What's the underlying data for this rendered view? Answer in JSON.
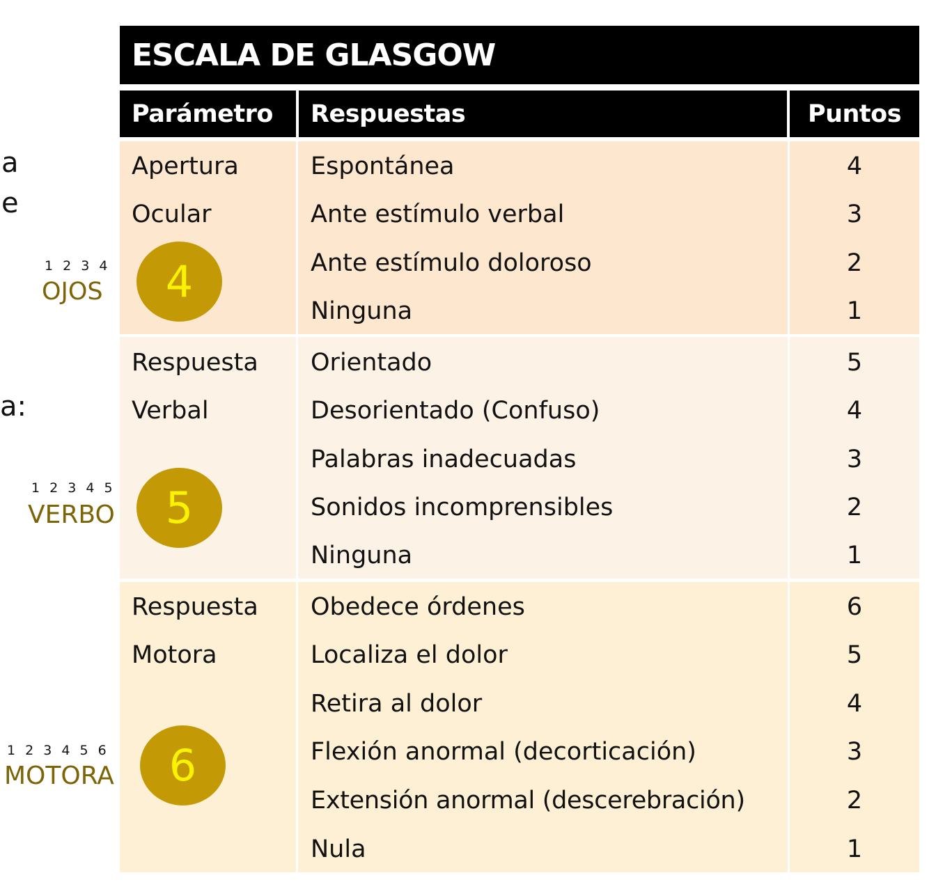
{
  "left_fragments": [
    "a",
    "e",
    "a:"
  ],
  "title": "ESCALA DE GLASGOW",
  "headers": {
    "param": "Parámetro",
    "resp": "Respuestas",
    "pts": "Puntos"
  },
  "groups": [
    {
      "param_line1": "Apertura",
      "param_line2": "Ocular",
      "score": "4",
      "scale_numbers": "1 2 3 4",
      "scale_label": "OJOS",
      "rows": [
        {
          "response": "Espontánea",
          "points": "4"
        },
        {
          "response": "Ante estímulo verbal",
          "points": "3"
        },
        {
          "response": "Ante estímulo doloroso",
          "points": "2"
        },
        {
          "response": "Ninguna",
          "points": "1"
        }
      ]
    },
    {
      "param_line1": "Respuesta",
      "param_line2": "Verbal",
      "score": "5",
      "scale_numbers": "1 2 3 4 5",
      "scale_label": "VERBO",
      "rows": [
        {
          "response": "Orientado",
          "points": "5"
        },
        {
          "response": "Desorientado (Confuso)",
          "points": "4"
        },
        {
          "response": "Palabras inadecuadas",
          "points": "3"
        },
        {
          "response": "Sonidos incomprensibles",
          "points": "2"
        },
        {
          "response": "Ninguna",
          "points": "1"
        }
      ]
    },
    {
      "param_line1": "Respuesta",
      "param_line2": "Motora",
      "score": "6",
      "scale_numbers": "1 2 3 4 5 6",
      "scale_label": "MOTORA",
      "rows": [
        {
          "response": "Obedece órdenes",
          "points": "6"
        },
        {
          "response": "Localiza el dolor",
          "points": "5"
        },
        {
          "response": "Retira al dolor",
          "points": "4"
        },
        {
          "response": "Flexión anormal (decorticación)",
          "points": "3"
        },
        {
          "response": "Extensión anormal (descerebración)",
          "points": "2"
        },
        {
          "response": "Nula",
          "points": "1"
        }
      ]
    }
  ]
}
